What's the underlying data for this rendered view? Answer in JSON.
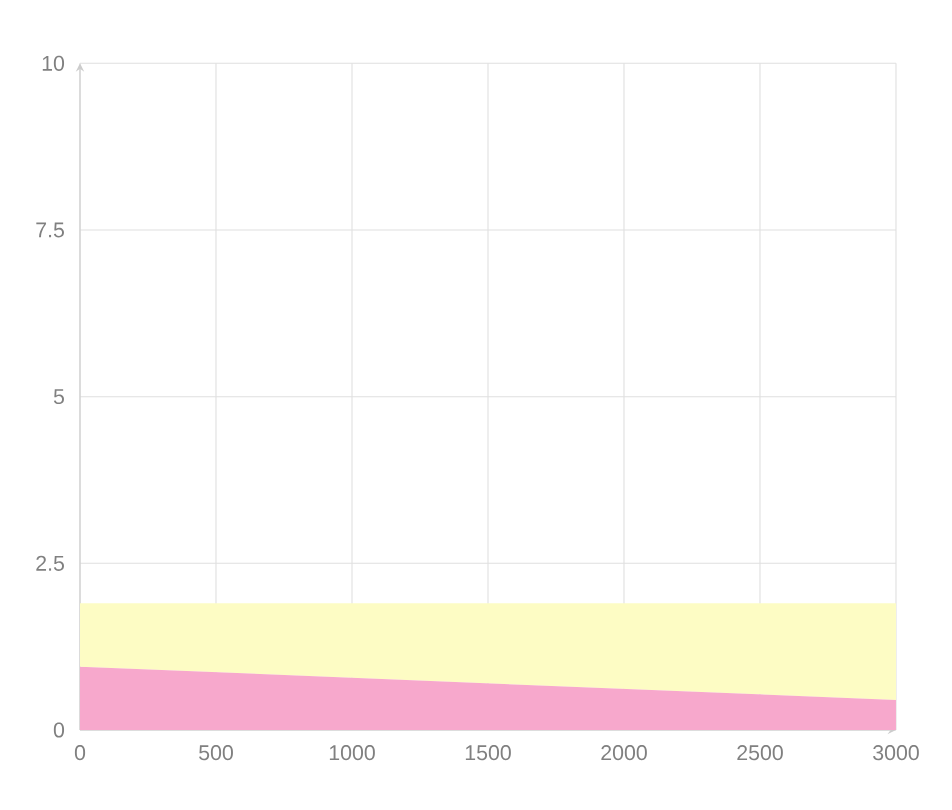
{
  "chart_data": {
    "type": "area",
    "stacked": true,
    "x": [
      0,
      1500,
      3000
    ],
    "series": [
      {
        "color": "#f7a8cc",
        "values": [
          0.95,
          0.7,
          0.45
        ]
      },
      {
        "color": "#fdfcc4",
        "values": [
          0.95,
          1.2,
          1.45
        ]
      }
    ],
    "xlim": [
      0,
      3000
    ],
    "xticks": [
      0,
      500,
      1000,
      1500,
      2000,
      2500,
      3000
    ],
    "ylim": [
      0,
      10
    ],
    "yticks": [
      0,
      2.5,
      5,
      7.5,
      10
    ],
    "grid": true
  }
}
